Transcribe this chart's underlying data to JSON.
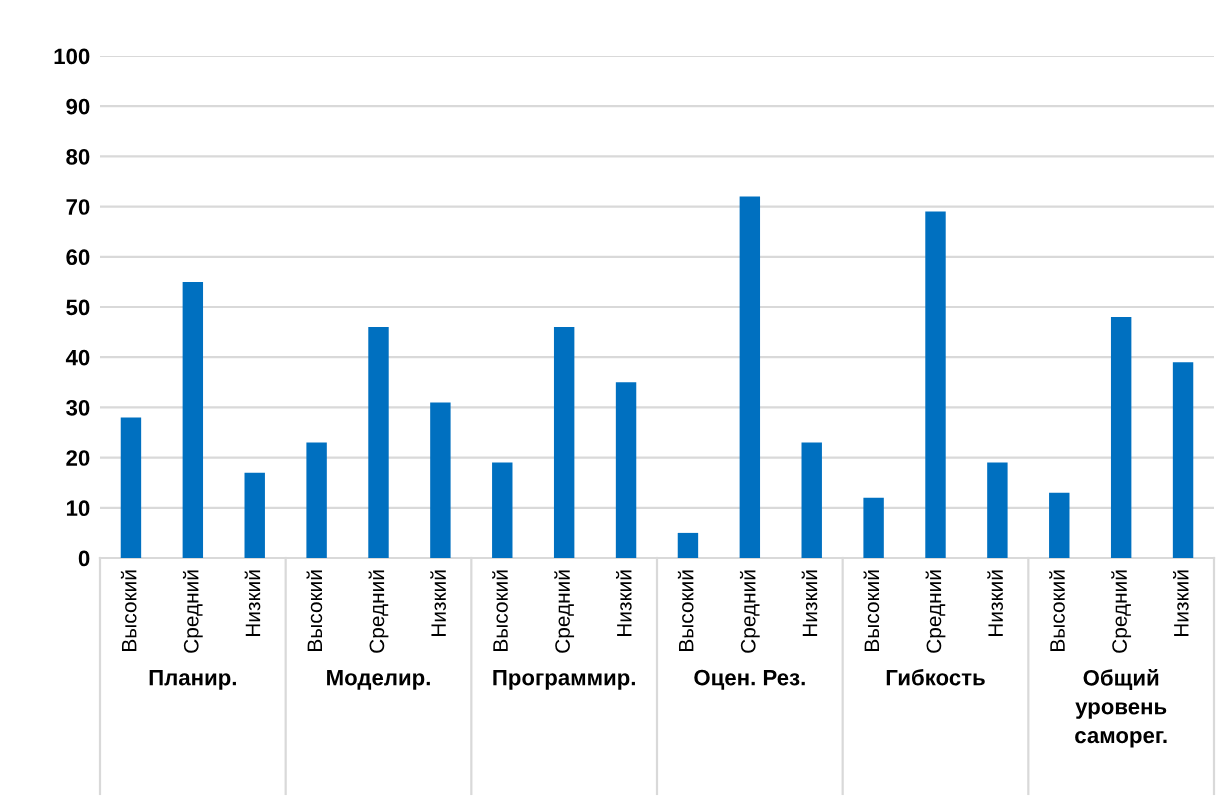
{
  "chart_data": {
    "type": "bar",
    "categories": [
      "Высокий",
      "Средний",
      "Низкий",
      "Высокий",
      "Средний",
      "Низкий",
      "Высокий",
      "Средний",
      "Низкий",
      "Высокий",
      "Средний",
      "Низкий",
      "Высокий",
      "Средний",
      "Низкий",
      "Высокий",
      "Средний",
      "Низкий"
    ],
    "values": [
      28,
      55,
      17,
      23,
      46,
      31,
      19,
      46,
      35,
      5,
      72,
      23,
      12,
      69,
      19,
      13,
      48,
      39
    ],
    "color": "#0070c0",
    "ylim": [
      0,
      100
    ],
    "yticks": [
      0,
      10,
      20,
      30,
      40,
      50,
      60,
      70,
      80,
      90,
      100
    ],
    "grid": "y",
    "annotations": [
      "Планир.",
      "Моделир.",
      "Программир.",
      "Оцен. Рез.",
      "Гибкость",
      "Общий\nуровень\nсаморег."
    ]
  }
}
